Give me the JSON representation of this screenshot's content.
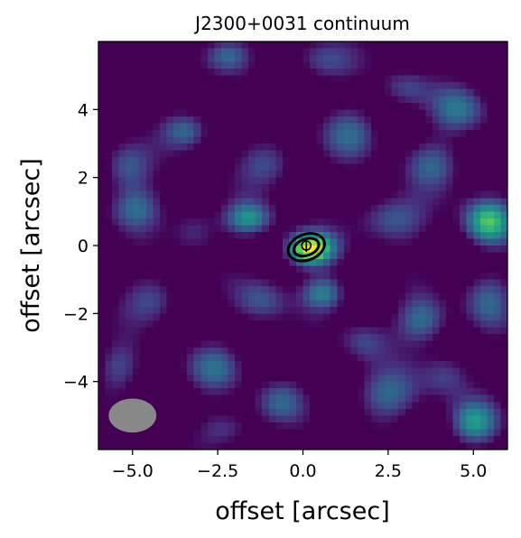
{
  "chart_data": {
    "type": "heatmap",
    "title": "J2300+0031 continuum",
    "xlabel": "offset [arcsec]",
    "ylabel": "offset [arcsec]",
    "xlim": [
      -6,
      6
    ],
    "ylim": [
      -6,
      6
    ],
    "xticks": [
      -5.0,
      -2.5,
      0.0,
      2.5,
      5.0
    ],
    "xtick_labels": [
      "−5.0",
      "−2.5",
      "0.0",
      "2.5",
      "5.0"
    ],
    "yticks": [
      -4,
      -2,
      0,
      2,
      4
    ],
    "ytick_labels": [
      "−4",
      "−2",
      "0",
      "2",
      "4"
    ],
    "colormap": "viridis",
    "background_color": "#440154",
    "grid": false,
    "peak_source": {
      "x": 0.1,
      "y": 0.0
    },
    "contours": [
      {
        "cx": 0.1,
        "cy": -0.05,
        "rx": 0.55,
        "ry": 0.38,
        "angle_deg": -20
      },
      {
        "cx": 0.1,
        "cy": -0.05,
        "rx": 0.38,
        "ry": 0.24,
        "angle_deg": -20
      }
    ],
    "beam": {
      "x": -5.0,
      "y": -5.0,
      "major": 1.4,
      "minor": 1.0,
      "angle_deg": 0,
      "color": "#888888"
    },
    "emission_blobs": [
      {
        "x": 0.2,
        "y": -0.1,
        "sx": 0.5,
        "sy": 0.35,
        "a": 1.0
      },
      {
        "x": 5.4,
        "y": 0.7,
        "sx": 0.5,
        "sy": 0.5,
        "a": 0.75
      },
      {
        "x": -1.6,
        "y": 0.8,
        "sx": 0.5,
        "sy": 0.35,
        "a": 0.55
      },
      {
        "x": 0.6,
        "y": -1.4,
        "sx": 0.45,
        "sy": 0.35,
        "a": 0.5
      },
      {
        "x": 5.0,
        "y": -5.2,
        "sx": 0.5,
        "sy": 0.45,
        "a": 0.55
      },
      {
        "x": -2.2,
        "y": 5.6,
        "sx": 0.5,
        "sy": 0.4,
        "a": 0.5
      },
      {
        "x": 2.6,
        "y": 0.8,
        "sx": 0.7,
        "sy": 0.5,
        "a": 0.45
      },
      {
        "x": 3.5,
        "y": -2.2,
        "sx": 0.55,
        "sy": 0.5,
        "a": 0.45
      },
      {
        "x": 4.6,
        "y": 4.0,
        "sx": 0.6,
        "sy": 0.5,
        "a": 0.4
      },
      {
        "x": -3.4,
        "y": 3.4,
        "sx": 0.5,
        "sy": 0.4,
        "a": 0.45
      },
      {
        "x": -5.2,
        "y": 2.3,
        "sx": 0.5,
        "sy": 0.5,
        "a": 0.4
      },
      {
        "x": -4.9,
        "y": 1.1,
        "sx": 0.55,
        "sy": 0.45,
        "a": 0.4
      },
      {
        "x": -2.6,
        "y": -3.6,
        "sx": 0.6,
        "sy": 0.5,
        "a": 0.35
      },
      {
        "x": -0.7,
        "y": -4.6,
        "sx": 0.5,
        "sy": 0.45,
        "a": 0.35
      },
      {
        "x": 2.4,
        "y": -4.4,
        "sx": 0.7,
        "sy": 0.55,
        "a": 0.4
      },
      {
        "x": 1.4,
        "y": 3.3,
        "sx": 0.6,
        "sy": 0.55,
        "a": 0.35
      },
      {
        "x": -1.0,
        "y": 2.4,
        "sx": 0.6,
        "sy": 0.5,
        "a": 0.35
      },
      {
        "x": 3.8,
        "y": 2.4,
        "sx": 0.6,
        "sy": 0.5,
        "a": 0.35
      },
      {
        "x": -4.4,
        "y": -1.6,
        "sx": 0.6,
        "sy": 0.5,
        "a": 0.35
      },
      {
        "x": -1.2,
        "y": -1.6,
        "sx": 0.55,
        "sy": 0.5,
        "a": 0.35
      },
      {
        "x": 0.6,
        "y": 5.4,
        "sx": 0.6,
        "sy": 0.45,
        "a": 0.35
      },
      {
        "x": 5.4,
        "y": -1.6,
        "sx": 0.5,
        "sy": 0.6,
        "a": 0.35
      },
      {
        "x": -3.2,
        "y": 0.5,
        "sx": 0.5,
        "sy": 0.5,
        "a": 0.3
      },
      {
        "x": 3.0,
        "y": 4.6,
        "sx": 0.5,
        "sy": 0.4,
        "a": 0.3
      },
      {
        "x": -5.4,
        "y": -3.6,
        "sx": 0.45,
        "sy": 0.5,
        "a": 0.3
      },
      {
        "x": 1.8,
        "y": -2.8,
        "sx": 0.5,
        "sy": 0.45,
        "a": 0.3
      },
      {
        "x": -2.2,
        "y": -5.4,
        "sx": 0.6,
        "sy": 0.4,
        "a": 0.3
      },
      {
        "x": 4.2,
        "y": -3.8,
        "sx": 0.5,
        "sy": 0.5,
        "a": 0.3
      }
    ]
  }
}
